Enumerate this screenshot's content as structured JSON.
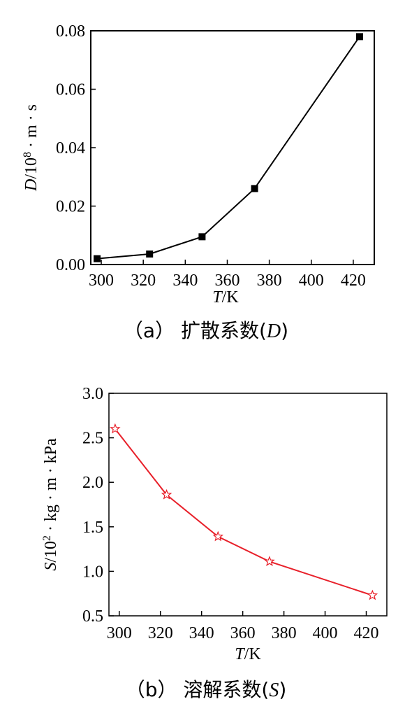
{
  "chart_data": [
    {
      "type": "line",
      "caption": "（a） 扩散系数(D)",
      "xlabel": "T/K",
      "ylabel": "D/10⁸ · m · s",
      "xlim": [
        295,
        430
      ],
      "ylim": [
        0,
        0.08
      ],
      "x_ticks": [
        300,
        320,
        340,
        360,
        380,
        400,
        420
      ],
      "y_ticks": [
        0.0,
        0.02,
        0.04,
        0.06,
        0.08
      ],
      "y_tick_labels": [
        "0.00",
        "0.02",
        "0.04",
        "0.06",
        "0.08"
      ],
      "grid": false,
      "series": [
        {
          "marker": "square",
          "color": "#000000",
          "x": [
            298,
            323,
            348,
            373,
            423
          ],
          "y": [
            0.002,
            0.0036,
            0.0095,
            0.026,
            0.078
          ]
        }
      ]
    },
    {
      "type": "line",
      "caption": "（b） 溶解系数(S)",
      "xlabel": "T/K",
      "ylabel": "S/10² · kg · m · kPa",
      "xlim": [
        295,
        430
      ],
      "ylim": [
        0.5,
        3.0
      ],
      "x_ticks": [
        300,
        320,
        340,
        360,
        380,
        400,
        420
      ],
      "y_ticks": [
        0.5,
        1.0,
        1.5,
        2.0,
        2.5,
        3.0
      ],
      "y_tick_labels": [
        "0.5",
        "1.0",
        "1.5",
        "2.0",
        "2.5",
        "3.0"
      ],
      "grid": false,
      "series": [
        {
          "marker": "star",
          "color": "#e8202a",
          "x": [
            298,
            323,
            348,
            373,
            423
          ],
          "y": [
            2.6,
            1.86,
            1.39,
            1.11,
            0.73
          ]
        }
      ]
    }
  ]
}
